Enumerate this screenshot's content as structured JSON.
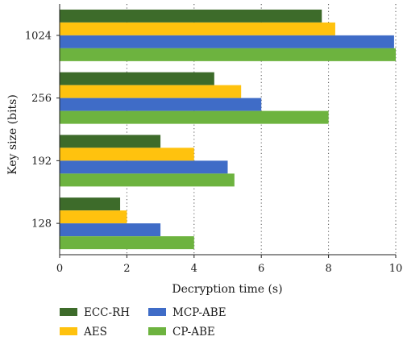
{
  "chart_data": {
    "type": "bar",
    "orientation": "horizontal",
    "categories": [
      "128",
      "192",
      "256",
      "1024"
    ],
    "series": [
      {
        "name": "ECC-RH",
        "values": [
          1.8,
          3.0,
          4.6,
          7.8
        ],
        "color": "#3d6b2a"
      },
      {
        "name": "AES",
        "values": [
          2.0,
          4.0,
          5.4,
          8.2
        ],
        "color": "#ffc20e"
      },
      {
        "name": "MCP-ABE",
        "values": [
          3.0,
          5.0,
          6.0,
          9.95
        ],
        "color": "#3f6cc7"
      },
      {
        "name": "CP-ABE",
        "values": [
          4.0,
          5.2,
          8.0,
          10.0
        ],
        "color": "#6db33f"
      }
    ],
    "xlabel": "Decryption time (s)",
    "ylabel": "Key size (bits)",
    "xlim": [
      0,
      10
    ],
    "xticks": [
      "0",
      "2",
      "4",
      "6",
      "8",
      "10"
    ],
    "grid": "vertical dotted",
    "legend": "bottom"
  }
}
